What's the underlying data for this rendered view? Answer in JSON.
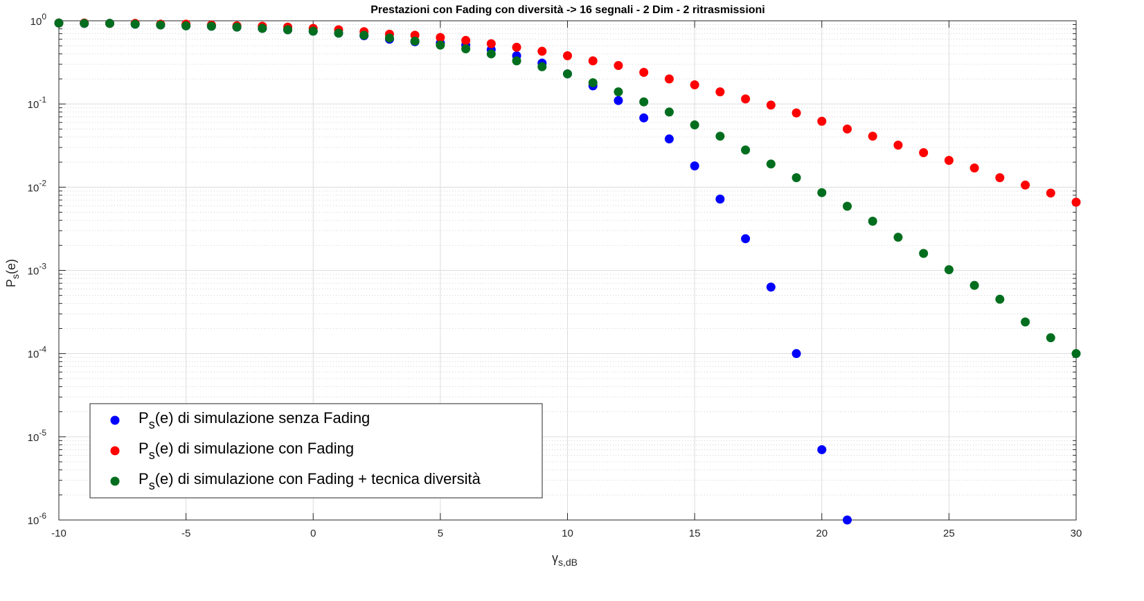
{
  "chart_data": {
    "type": "scatter",
    "title": "Prestazioni con Fading con diversità -> 16 segnali - 2 Dim - 2 ritrasmissioni",
    "xlabel": {
      "base": "γ",
      "sub": "s,dB"
    },
    "ylabel": {
      "base": "P",
      "sub": "s",
      "rest": "(e)"
    },
    "xlim": [
      -10,
      30
    ],
    "ylim": [
      1e-06,
      1
    ],
    "yscale": "log",
    "grid": true,
    "legend_position": "bottom-left",
    "x_ticks": [
      "-10",
      "-5",
      "0",
      "5",
      "10",
      "15",
      "20",
      "25",
      "30"
    ],
    "y_ticks": [
      {
        "base": "10",
        "exp": "0"
      },
      {
        "base": "10",
        "exp": "-1"
      },
      {
        "base": "10",
        "exp": "-2"
      },
      {
        "base": "10",
        "exp": "-3"
      },
      {
        "base": "10",
        "exp": "-4"
      },
      {
        "base": "10",
        "exp": "-5"
      },
      {
        "base": "10",
        "exp": "-6"
      }
    ],
    "series": [
      {
        "name": {
          "p": "P",
          "sub": "s",
          "rest": "(e) di simulazione senza Fading"
        },
        "color": "#0000ff",
        "x": [
          -10,
          -9,
          -8,
          -7,
          -6,
          -5,
          -4,
          -3,
          -2,
          -1,
          0,
          1,
          2,
          3,
          4,
          5,
          6,
          7,
          8,
          9,
          10,
          11,
          12,
          13,
          14,
          15,
          16,
          17,
          18,
          19,
          20,
          21
        ],
        "y": [
          0.94,
          0.93,
          0.93,
          0.91,
          0.89,
          0.87,
          0.86,
          0.84,
          0.81,
          0.78,
          0.75,
          0.71,
          0.66,
          0.6,
          0.56,
          0.54,
          0.51,
          0.45,
          0.38,
          0.31,
          0.23,
          0.165,
          0.11,
          0.068,
          0.038,
          0.018,
          0.0072,
          0.0024,
          0.00063,
          0.0001,
          7e-06,
          1e-06
        ]
      },
      {
        "name": {
          "p": "P",
          "sub": "s",
          "rest": "(e) di simulazione con Fading"
        },
        "color": "#ff0000",
        "x": [
          -10,
          -9,
          -8,
          -7,
          -6,
          -5,
          -4,
          -3,
          -2,
          -1,
          0,
          1,
          2,
          3,
          4,
          5,
          6,
          7,
          8,
          9,
          10,
          11,
          12,
          13,
          14,
          15,
          16,
          17,
          18,
          19,
          20,
          21,
          22,
          23,
          24,
          25,
          26,
          27,
          28,
          29,
          30
        ],
        "y": [
          0.94,
          0.94,
          0.93,
          0.93,
          0.91,
          0.91,
          0.89,
          0.87,
          0.86,
          0.84,
          0.81,
          0.78,
          0.74,
          0.69,
          0.67,
          0.63,
          0.58,
          0.53,
          0.48,
          0.43,
          0.38,
          0.33,
          0.29,
          0.24,
          0.2,
          0.17,
          0.14,
          0.115,
          0.097,
          0.078,
          0.062,
          0.05,
          0.041,
          0.032,
          0.026,
          0.021,
          0.017,
          0.013,
          0.0106,
          0.0085,
          0.0066
        ]
      },
      {
        "name": {
          "p": "P",
          "sub": "s",
          "rest": "(e) di simulazione con Fading + tecnica diversità"
        },
        "color": "#006e1e",
        "x": [
          -10,
          -9,
          -8,
          -7,
          -6,
          -5,
          -4,
          -3,
          -2,
          -1,
          0,
          1,
          2,
          3,
          4,
          5,
          6,
          7,
          8,
          9,
          10,
          11,
          12,
          13,
          14,
          15,
          16,
          17,
          18,
          19,
          20,
          21,
          22,
          23,
          24,
          25,
          26,
          27,
          28,
          29,
          30
        ],
        "y": [
          0.94,
          0.93,
          0.93,
          0.91,
          0.89,
          0.87,
          0.86,
          0.84,
          0.81,
          0.78,
          0.75,
          0.71,
          0.67,
          0.62,
          0.57,
          0.51,
          0.46,
          0.4,
          0.33,
          0.28,
          0.23,
          0.18,
          0.14,
          0.106,
          0.08,
          0.056,
          0.041,
          0.028,
          0.019,
          0.013,
          0.0086,
          0.0059,
          0.0039,
          0.0025,
          0.0016,
          0.00102,
          0.00066,
          0.00045,
          0.00024,
          0.000155,
          0.0001
        ]
      }
    ]
  }
}
